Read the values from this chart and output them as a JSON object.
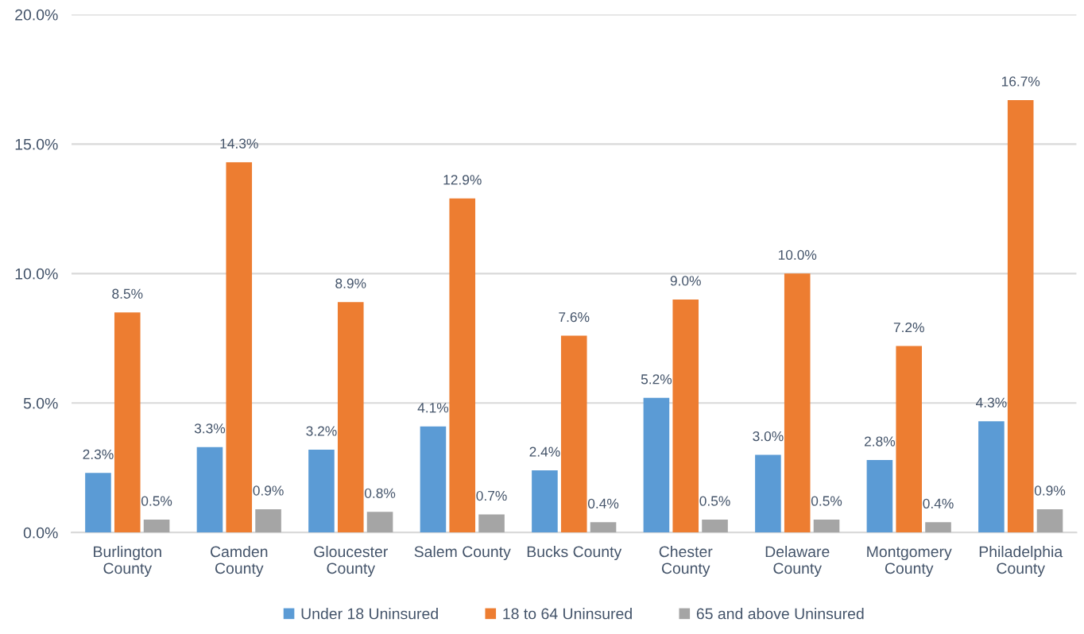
{
  "chart_data": {
    "type": "bar",
    "categories": [
      "Burlington\nCounty",
      "Camden\nCounty",
      "Gloucester\nCounty",
      "Salem County",
      "Bucks County",
      "Chester\nCounty",
      "Delaware\nCounty",
      "Montgomery\nCounty",
      "Philadelphia\nCounty"
    ],
    "series": [
      {
        "name": "Under 18 Uninsured",
        "color": "#5b9bd5",
        "values": [
          2.3,
          3.3,
          3.2,
          4.1,
          2.4,
          5.2,
          3.0,
          2.8,
          4.3
        ],
        "value_labels": [
          "2.3%",
          "3.3%",
          "3.2%",
          "4.1%",
          "2.4%",
          "5.2%",
          "3.0%",
          "2.8%",
          "4.3%"
        ]
      },
      {
        "name": "18 to 64 Uninsured",
        "color": "#ed7d31",
        "values": [
          8.5,
          14.3,
          8.9,
          12.9,
          7.6,
          9.0,
          10.0,
          7.2,
          16.7
        ],
        "value_labels": [
          "8.5%",
          "14.3%",
          "8.9%",
          "12.9%",
          "7.6%",
          "9.0%",
          "10.0%",
          "7.2%",
          "16.7%"
        ]
      },
      {
        "name": "65 and above Uninsured",
        "color": "#a5a5a5",
        "values": [
          0.5,
          0.9,
          0.8,
          0.7,
          0.4,
          0.5,
          0.5,
          0.4,
          0.9
        ],
        "value_labels": [
          "0.5%",
          "0.9%",
          "0.8%",
          "0.7%",
          "0.4%",
          "0.5%",
          "0.5%",
          "0.4%",
          "0.9%"
        ]
      }
    ],
    "ylim": [
      0,
      20
    ],
    "yticks": [
      {
        "value": 0,
        "label": "0.0%"
      },
      {
        "value": 5,
        "label": "5.0%"
      },
      {
        "value": 10,
        "label": "10.0%"
      },
      {
        "value": 15,
        "label": "15.0%"
      },
      {
        "value": 20,
        "label": "20.0%"
      }
    ],
    "grid": "y",
    "legend": "bottom"
  }
}
